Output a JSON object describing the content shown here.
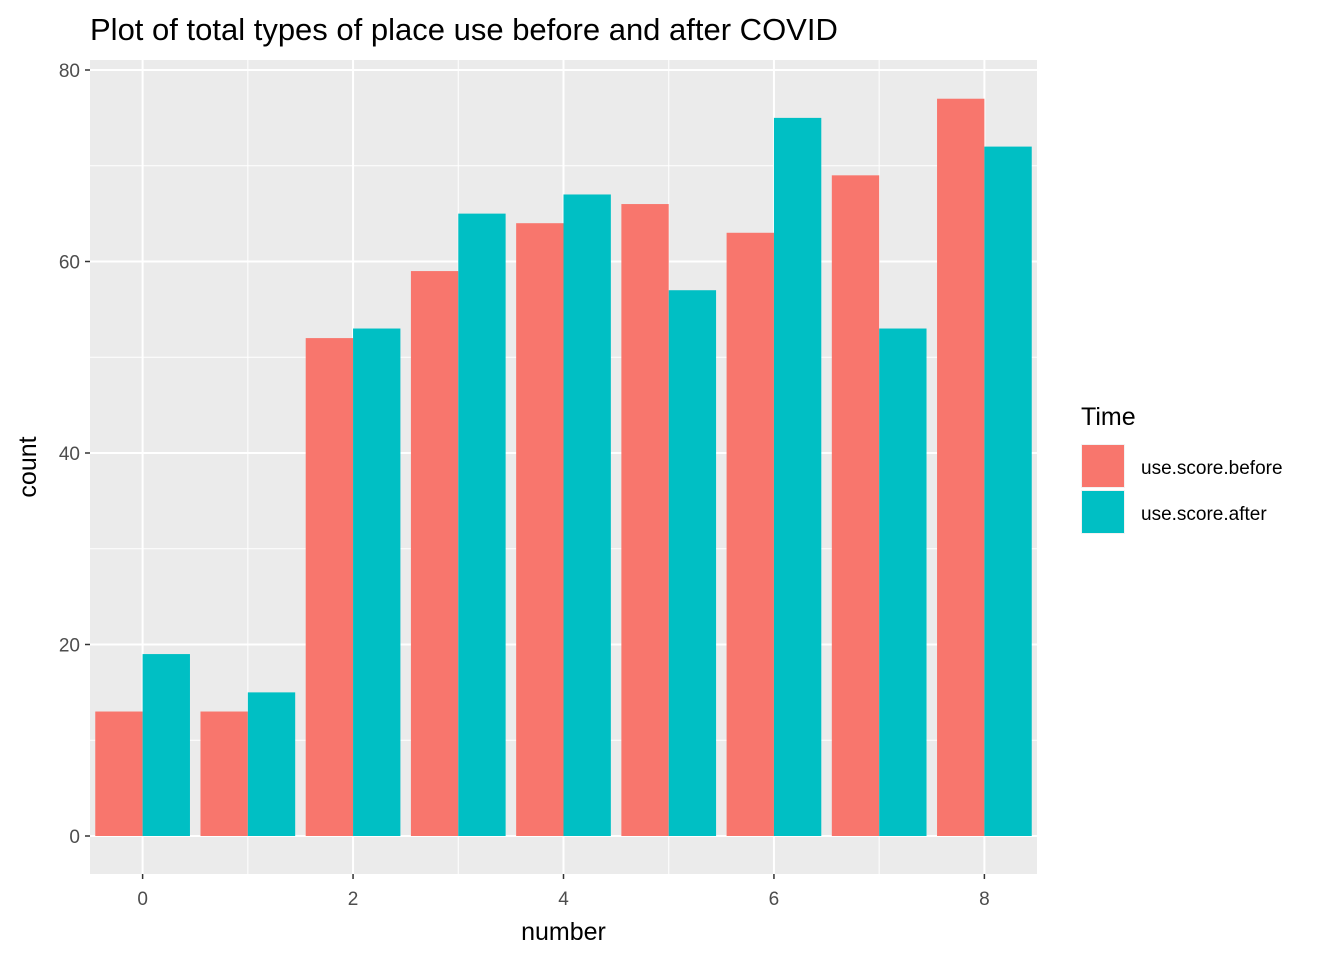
{
  "chart_data": {
    "type": "bar",
    "title": "Plot of total types of place use before and after COVID",
    "xlabel": "number",
    "ylabel": "count",
    "x": [
      0,
      1,
      2,
      3,
      4,
      5,
      6,
      7,
      8
    ],
    "x_tick_labels": [
      "0",
      "2",
      "4",
      "6",
      "8"
    ],
    "x_tick_values": [
      0,
      2,
      4,
      6,
      8
    ],
    "y_tick_labels": [
      "0",
      "20",
      "40",
      "60",
      "80"
    ],
    "y_tick_values": [
      0,
      20,
      40,
      60,
      80
    ],
    "xlim": [
      -0.5,
      8.5
    ],
    "ylim": [
      0,
      80
    ],
    "grid": true,
    "legend": {
      "title": "Time",
      "placement": "right"
    },
    "series": [
      {
        "name": "use.score.before",
        "color": "#F8766D",
        "values": [
          13,
          13,
          52,
          59,
          64,
          66,
          63,
          69,
          77
        ]
      },
      {
        "name": "use.score.after",
        "color": "#00BFC4",
        "values": [
          19,
          15,
          53,
          65,
          67,
          57,
          75,
          53,
          72
        ]
      }
    ],
    "panel_background": "#EBEBEB",
    "grid_color": "#FFFFFF"
  }
}
